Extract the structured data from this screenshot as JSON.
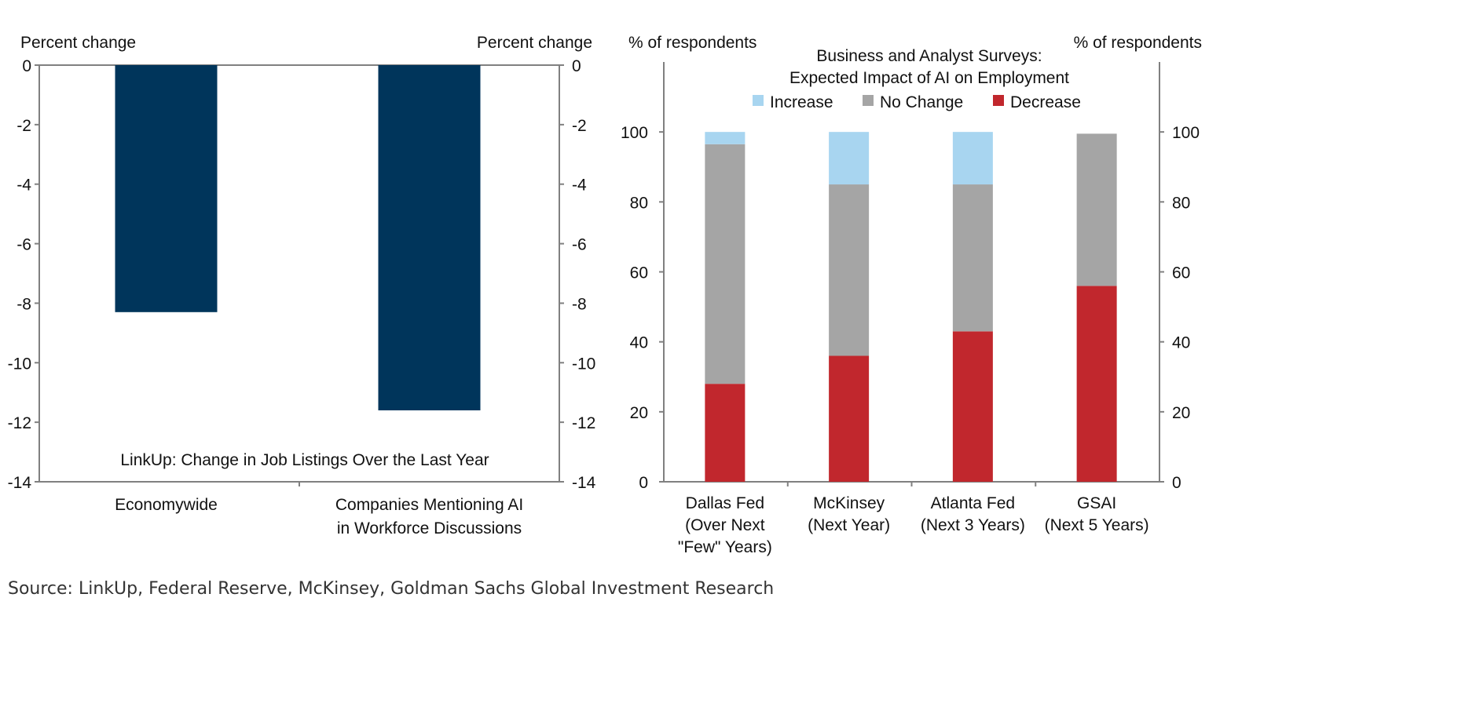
{
  "chart_data": [
    {
      "type": "bar",
      "title": "LinkUp: Change in Job Listings Over the Last Year",
      "ylabel_left": "Percent change",
      "ylabel_right": "Percent change",
      "categories": [
        [
          "Economywide"
        ],
        [
          "Companies Mentioning AI",
          "in Workforce Discussions"
        ]
      ],
      "values": [
        -8.3,
        -11.6
      ],
      "ylim": [
        -14,
        0
      ],
      "yticks": [
        "0",
        "-2",
        "-4",
        "-6",
        "-8",
        "-10",
        "-12",
        "-14"
      ],
      "grid": false,
      "colors": {
        "bar": "#00355B"
      }
    },
    {
      "type": "bar",
      "stacked": true,
      "title": [
        "Business and Analyst Surveys:",
        "Expected Impact of AI on Employment"
      ],
      "ylabel_left": "% of respondents",
      "ylabel_right": "% of respondents",
      "categories": [
        [
          "Dallas Fed",
          "(Over Next",
          "\"Few\" Years)"
        ],
        [
          "McKinsey",
          "(Next Year)"
        ],
        [
          "Atlanta Fed",
          "(Next 3 Years)"
        ],
        [
          "GSAI",
          "(Next 5 Years)"
        ]
      ],
      "series": [
        {
          "name": "Decrease",
          "values": [
            28,
            36,
            43,
            56
          ],
          "color": "#C1272D"
        },
        {
          "name": "No Change",
          "values": [
            68.5,
            49,
            42,
            43.5
          ],
          "color": "#A5A5A5"
        },
        {
          "name": "Increase",
          "values": [
            3.5,
            15,
            15,
            0
          ],
          "color": "#A8D5F0"
        }
      ],
      "legend_order": [
        "Increase",
        "No Change",
        "Decrease"
      ],
      "legend_placement": "top",
      "ylim": [
        0,
        120
      ],
      "yticks": [
        "0",
        "20",
        "40",
        "60",
        "80",
        "100"
      ],
      "grid": false
    }
  ],
  "source": "Source: LinkUp, Federal Reserve, McKinsey, Goldman Sachs Global Investment Research"
}
